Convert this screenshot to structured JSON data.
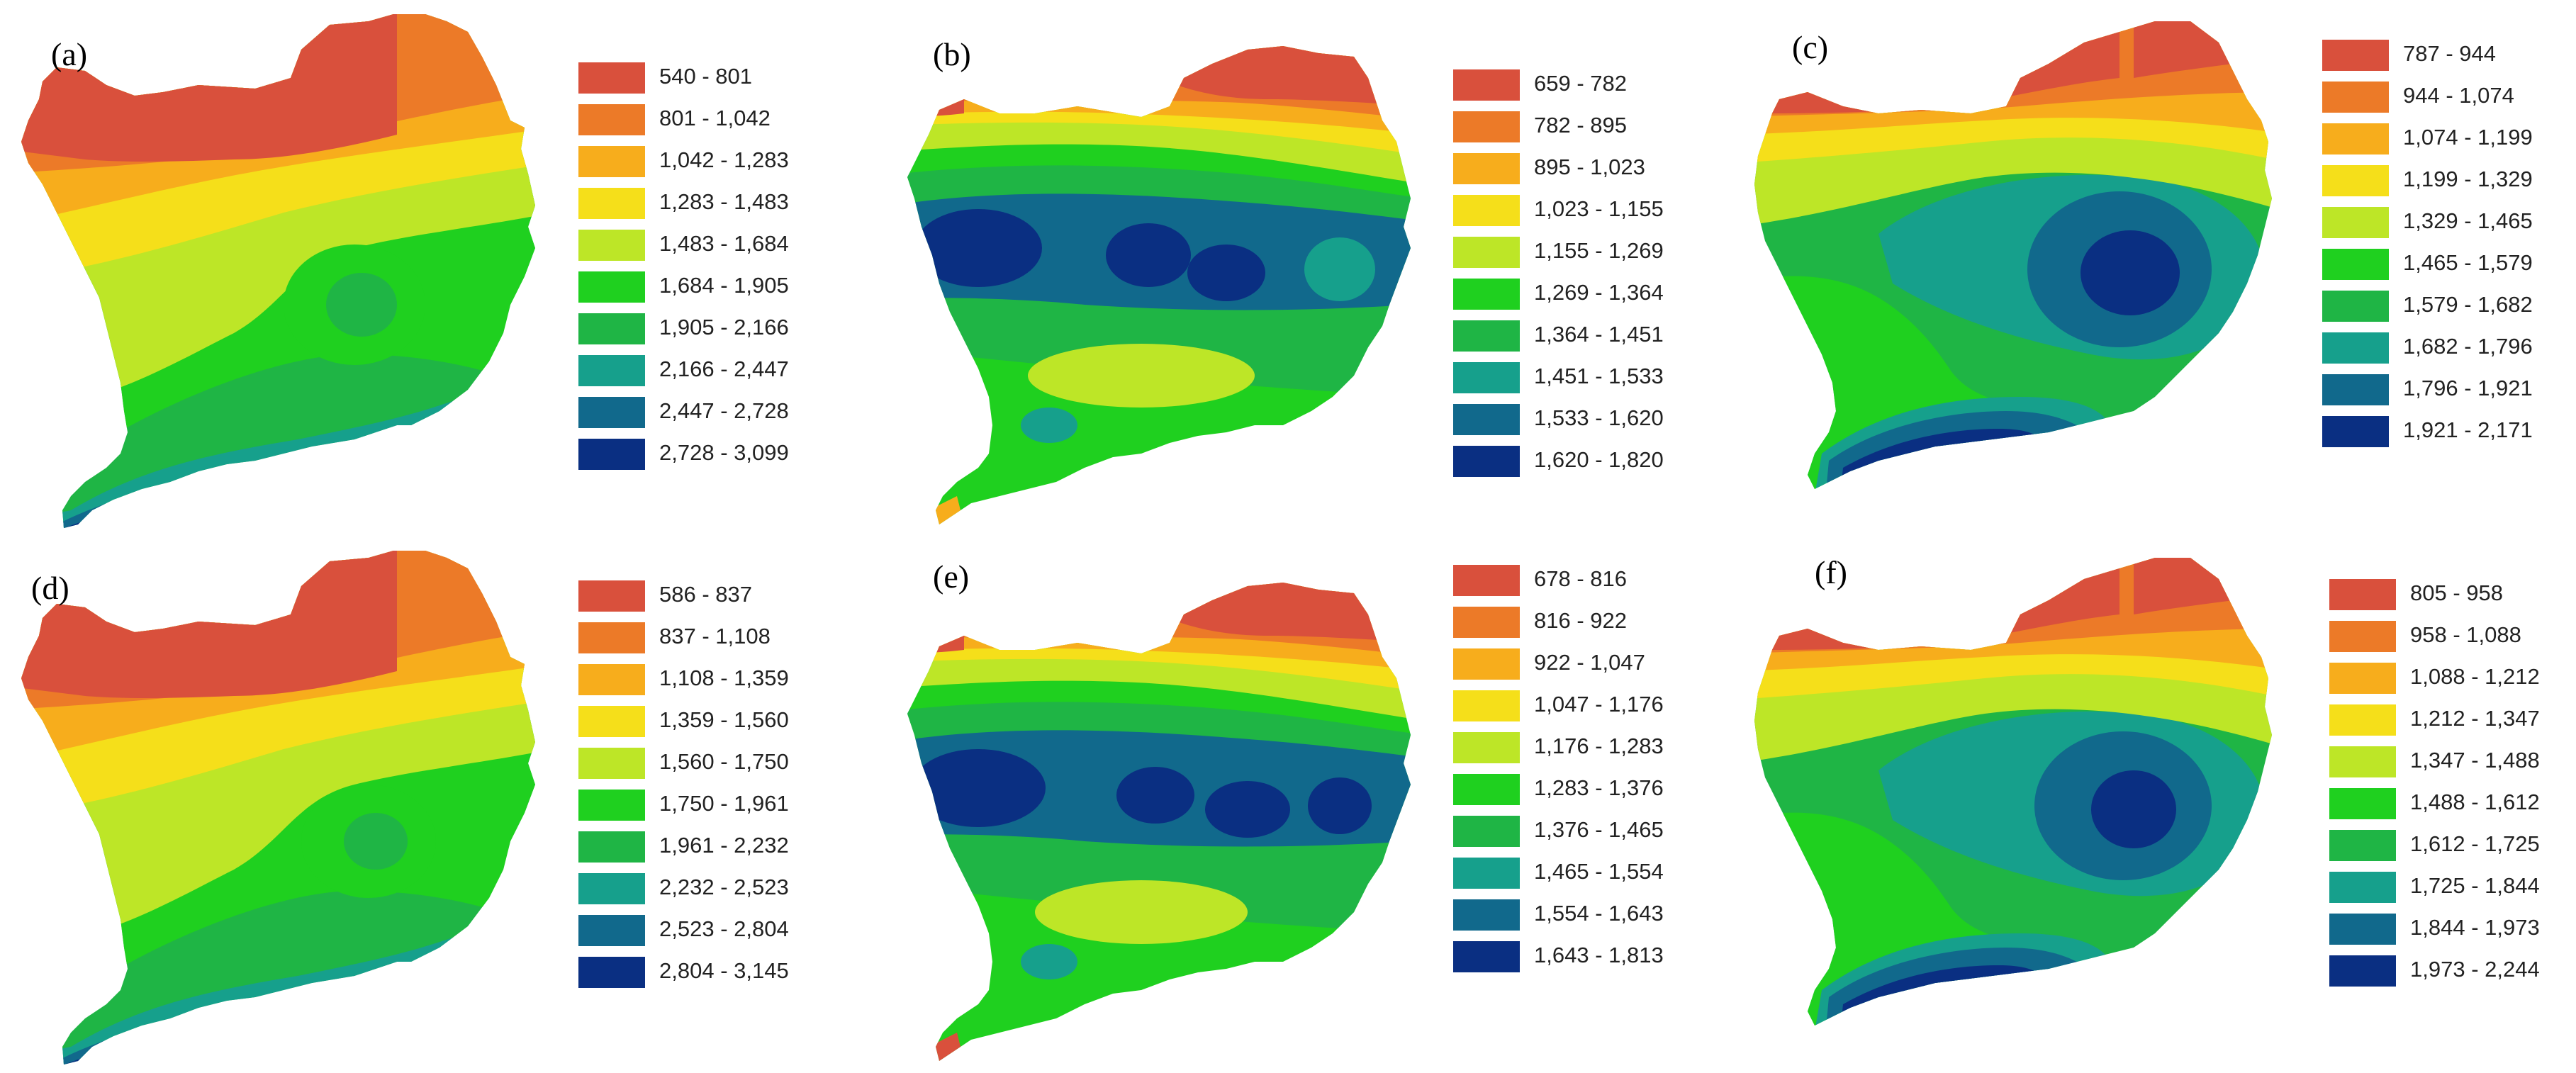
{
  "colors": [
    "#d9503c",
    "#ec7a28",
    "#f7ad1c",
    "#f5df1a",
    "#bde627",
    "#1fd01f",
    "#1fb545",
    "#16a08c",
    "#11698c",
    "#0a2f82"
  ],
  "panels": [
    {
      "label": "(a)",
      "legend": [
        "540 - 801",
        "801 - 1,042",
        "1,042 - 1,283",
        "1,283 - 1,483",
        "1,483 - 1,684",
        "1,684 - 1,905",
        "1,905 - 2,166",
        "2,166 - 2,447",
        "2,447 - 2,728",
        "2,728 - 3,099"
      ]
    },
    {
      "label": "(b)",
      "legend": [
        "659 - 782",
        "782 - 895",
        "895 - 1,023",
        "1,023 - 1,155",
        "1,155 - 1,269",
        "1,269 - 1,364",
        "1,364 - 1,451",
        "1,451 - 1,533",
        "1,533 - 1,620",
        "1,620 - 1,820"
      ]
    },
    {
      "label": "(c)",
      "legend": [
        "787 - 944",
        "944 - 1,074",
        "1,074 - 1,199",
        "1,199 - 1,329",
        "1,329 - 1,465",
        "1,465 - 1,579",
        "1,579 - 1,682",
        "1,682 - 1,796",
        "1,796 - 1,921",
        "1,921 - 2,171"
      ]
    },
    {
      "label": "(d)",
      "legend": [
        "586 - 837",
        "837 - 1,108",
        "1,108 - 1,359",
        "1,359 - 1,560",
        "1,560 - 1,750",
        "1,750 - 1,961",
        "1,961 - 2,232",
        "2,232 - 2,523",
        "2,523 - 2,804",
        "2,804 - 3,145"
      ]
    },
    {
      "label": "(e)",
      "legend": [
        "678 - 816",
        "816 - 922",
        "922 - 1,047",
        "1,047 - 1,176",
        "1,176 - 1,283",
        "1,283 - 1,376",
        "1,376 - 1,465",
        "1,465 - 1,554",
        "1,554 - 1,643",
        "1,643 - 1,813"
      ]
    },
    {
      "label": "(f)",
      "legend": [
        "805 - 958",
        "958 - 1,088",
        "1,088 - 1,212",
        "1,212 - 1,347",
        "1,347 - 1,488",
        "1,488 - 1,612",
        "1,612 - 1,725",
        "1,725 - 1,844",
        "1,844 - 1,973",
        "1,973 - 2,244"
      ]
    }
  ]
}
